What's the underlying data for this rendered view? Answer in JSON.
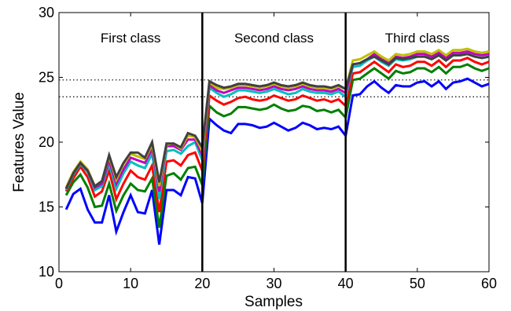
{
  "chart_data": {
    "type": "line",
    "title": "",
    "xlabel": "Samples",
    "ylabel": "Features Value",
    "xlim": [
      0,
      60
    ],
    "ylim": [
      10,
      30
    ],
    "xticks": [
      0,
      10,
      20,
      30,
      40,
      50,
      60
    ],
    "yticks": [
      10,
      15,
      20,
      25,
      30
    ],
    "grid": false,
    "legend": "none",
    "class_boundaries": [
      20,
      40
    ],
    "class_labels": [
      {
        "text": "First class",
        "x": 10
      },
      {
        "text": "Second class",
        "x": 30
      },
      {
        "text": "Third class",
        "x": 50
      }
    ],
    "threshold_lines": [
      24.8,
      23.5
    ],
    "x": [
      1,
      2,
      3,
      4,
      5,
      6,
      7,
      8,
      9,
      10,
      11,
      12,
      13,
      14,
      15,
      16,
      17,
      18,
      19,
      20,
      21,
      22,
      23,
      24,
      25,
      26,
      27,
      28,
      29,
      30,
      31,
      32,
      33,
      34,
      35,
      36,
      37,
      38,
      39,
      40,
      41,
      42,
      43,
      44,
      45,
      46,
      47,
      48,
      49,
      50,
      51,
      52,
      53,
      54,
      55,
      56,
      57,
      58,
      59,
      60
    ],
    "series": [
      {
        "color": "#0000ff",
        "values": [
          14.8,
          16.0,
          16.4,
          14.8,
          13.8,
          13.8,
          15.9,
          13.1,
          14.6,
          15.9,
          14.6,
          14.5,
          16.3,
          12.1,
          16.3,
          16.3,
          15.9,
          17.3,
          17.2,
          15.3,
          21.8,
          21.3,
          20.9,
          20.7,
          21.4,
          21.4,
          21.3,
          21.1,
          21.2,
          21.5,
          21.2,
          20.9,
          21.1,
          21.5,
          21.3,
          21.0,
          21.1,
          21.0,
          21.2,
          20.5,
          23.6,
          23.7,
          24.3,
          24.7,
          24.2,
          23.8,
          24.4,
          24.3,
          24.3,
          24.6,
          24.7,
          24.3,
          24.7,
          24.1,
          24.6,
          24.7,
          24.9,
          24.6,
          24.3,
          24.5
        ]
      },
      {
        "color": "#008000",
        "values": [
          15.9,
          16.9,
          17.5,
          16.5,
          15.0,
          15.1,
          16.8,
          14.7,
          15.9,
          16.8,
          16.3,
          16.2,
          17.2,
          13.4,
          17.4,
          17.6,
          17.1,
          18.0,
          18.1,
          16.7,
          22.8,
          22.3,
          22.0,
          22.2,
          22.7,
          22.7,
          22.6,
          22.5,
          22.6,
          22.9,
          22.6,
          22.4,
          22.5,
          22.8,
          22.7,
          22.4,
          22.5,
          22.3,
          22.5,
          21.9,
          24.8,
          24.9,
          25.3,
          25.7,
          25.3,
          24.9,
          25.5,
          25.3,
          25.4,
          25.7,
          25.7,
          25.4,
          25.8,
          25.3,
          25.8,
          25.8,
          26.0,
          25.7,
          25.5,
          25.7
        ]
      },
      {
        "color": "#ff0000",
        "values": [
          16.2,
          17.2,
          18.1,
          17.3,
          15.8,
          16.2,
          17.8,
          15.6,
          16.8,
          17.8,
          17.3,
          17.1,
          18.2,
          14.6,
          18.5,
          18.6,
          18.2,
          19.0,
          19.2,
          17.8,
          23.6,
          23.2,
          22.9,
          23.1,
          23.4,
          23.5,
          23.3,
          23.2,
          23.3,
          23.6,
          23.4,
          23.2,
          23.3,
          23.6,
          23.4,
          23.2,
          23.3,
          23.1,
          23.3,
          22.8,
          25.3,
          25.4,
          25.8,
          26.2,
          25.8,
          25.4,
          26.0,
          25.8,
          25.9,
          26.2,
          26.2,
          25.9,
          26.3,
          25.8,
          26.3,
          26.3,
          26.5,
          26.2,
          26.0,
          26.2
        ]
      },
      {
        "color": "#00bfbf",
        "values": [
          16.3,
          17.5,
          18.3,
          17.7,
          16.3,
          16.6,
          18.3,
          16.4,
          17.6,
          18.5,
          18.2,
          18.0,
          19.1,
          15.6,
          19.3,
          19.4,
          19.1,
          19.7,
          20.0,
          18.6,
          24.2,
          23.8,
          23.5,
          23.7,
          24.0,
          24.0,
          23.9,
          23.8,
          23.9,
          24.1,
          23.9,
          23.7,
          23.8,
          24.1,
          23.9,
          23.8,
          23.8,
          23.7,
          23.9,
          23.5,
          25.8,
          25.9,
          26.3,
          26.6,
          26.2,
          25.9,
          26.4,
          26.3,
          26.4,
          26.6,
          26.6,
          26.4,
          26.7,
          26.3,
          26.7,
          26.7,
          26.8,
          26.6,
          26.5,
          26.6
        ]
      },
      {
        "color": "#bf00bf",
        "values": [
          16.4,
          17.6,
          18.4,
          17.8,
          16.5,
          16.8,
          18.6,
          16.8,
          17.9,
          18.8,
          18.6,
          18.4,
          19.5,
          16.2,
          19.7,
          19.7,
          19.4,
          20.2,
          20.2,
          19.0,
          24.4,
          24.0,
          23.8,
          24.0,
          24.2,
          24.2,
          24.1,
          24.0,
          24.1,
          24.3,
          24.1,
          24.0,
          24.1,
          24.3,
          24.1,
          24.0,
          24.0,
          23.9,
          24.1,
          23.8,
          26.0,
          26.1,
          26.4,
          26.8,
          26.4,
          26.1,
          26.6,
          26.5,
          26.6,
          26.8,
          26.8,
          26.6,
          26.9,
          26.5,
          26.9,
          26.9,
          27.0,
          26.8,
          26.7,
          26.8
        ]
      },
      {
        "color": "#bfbf00",
        "values": [
          16.5,
          17.7,
          18.5,
          17.9,
          16.6,
          17.0,
          18.9,
          17.1,
          18.3,
          19.1,
          18.9,
          18.7,
          19.8,
          16.6,
          19.8,
          19.9,
          19.5,
          20.5,
          20.4,
          19.3,
          24.6,
          24.2,
          24.1,
          24.2,
          24.4,
          24.4,
          24.3,
          24.2,
          24.3,
          24.5,
          24.3,
          24.2,
          24.3,
          24.5,
          24.3,
          24.2,
          24.2,
          24.1,
          24.3,
          24.1,
          26.3,
          26.4,
          26.7,
          27.0,
          26.6,
          26.3,
          26.8,
          26.7,
          26.8,
          27.0,
          27.0,
          26.8,
          27.1,
          26.7,
          27.1,
          27.1,
          27.2,
          27.0,
          26.9,
          27.0
        ]
      },
      {
        "color": "#404040",
        "values": [
          16.4,
          17.6,
          18.4,
          17.8,
          16.6,
          17.0,
          19.0,
          17.3,
          18.4,
          19.2,
          19.2,
          18.8,
          20.0,
          16.9,
          19.9,
          19.9,
          19.6,
          20.7,
          20.5,
          19.6,
          24.7,
          24.4,
          24.2,
          24.3,
          24.5,
          24.5,
          24.4,
          24.3,
          24.4,
          24.6,
          24.4,
          24.3,
          24.4,
          24.6,
          24.4,
          24.3,
          24.3,
          24.2,
          24.4,
          24.1,
          26.0,
          26.1,
          26.4,
          26.6,
          26.3,
          26.0,
          26.5,
          26.4,
          26.5,
          26.6,
          26.6,
          26.4,
          26.7,
          26.3,
          26.7,
          26.7,
          26.8,
          26.6,
          26.5,
          26.6
        ]
      }
    ]
  }
}
